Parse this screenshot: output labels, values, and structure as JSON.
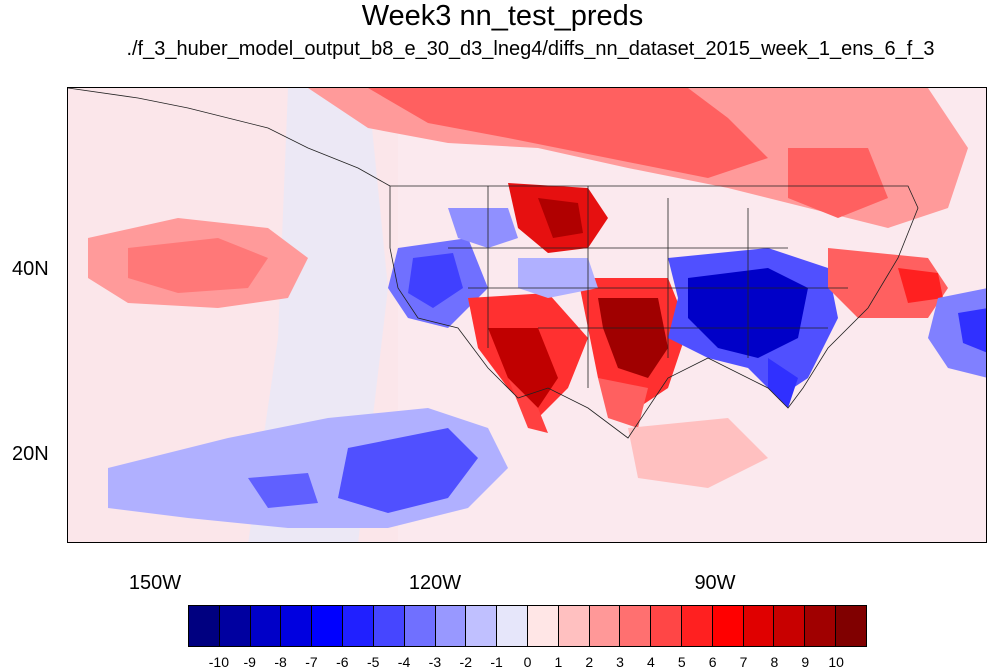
{
  "title": "Week3 nn_test_preds",
  "subtitle": "./f_3_huber_model_output_b8_e_30_d3_lneg4/diffs_nn_dataset_2015_week_1_ens_6_f_3",
  "lat_labels": [
    "40N",
    "20N"
  ],
  "lon_labels": [
    "150W",
    "120W",
    "90W"
  ],
  "colorbar": {
    "colors": [
      "#000080",
      "#0000a0",
      "#0000c8",
      "#0000e0",
      "#0000ff",
      "#2020ff",
      "#4646ff",
      "#7070ff",
      "#9898ff",
      "#c0c0ff",
      "#e6e6fa",
      "#ffe6e6",
      "#ffc0c0",
      "#ff9898",
      "#ff7070",
      "#ff4646",
      "#ff2020",
      "#ff0000",
      "#e00000",
      "#c80000",
      "#a00000",
      "#800000"
    ],
    "labels": [
      "-10",
      "-9",
      "-8",
      "-7",
      "-6",
      "-5",
      "-4",
      "-3",
      "-2",
      "-1",
      "0",
      "1",
      "2",
      "3",
      "4",
      "5",
      "6",
      "7",
      "8",
      "9",
      "10"
    ]
  }
}
